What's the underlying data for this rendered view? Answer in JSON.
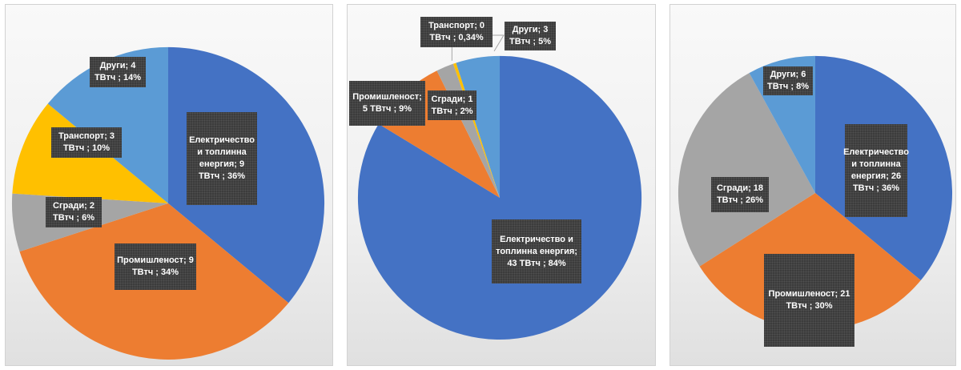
{
  "chart_data": [
    {
      "type": "pie",
      "colors": [
        "#4472c4",
        "#ed7d31",
        "#a5a5a5",
        "#ffc000",
        "#5b9bd5"
      ],
      "slices": [
        {
          "name": "Електричество и топлинна енергия",
          "value": 9,
          "percent": 36,
          "label": "Електричество и топлинна енергия; 9 ТВтч ; 36%"
        },
        {
          "name": "Промишленост",
          "value": 9,
          "percent": 34,
          "label": "Промишленост; 9 ТВтч ; 34%"
        },
        {
          "name": "Сгради",
          "value": 2,
          "percent": 6,
          "label": "Сгради; 2 ТВтч ; 6%"
        },
        {
          "name": "Транспорт",
          "value": 3,
          "percent": 10,
          "label": "Транспорт; 3 ТВтч ; 10%"
        },
        {
          "name": "Други",
          "value": 4,
          "percent": 14,
          "label": "Други; 4 ТВтч ; 14%"
        }
      ]
    },
    {
      "type": "pie",
      "colors": [
        "#4472c4",
        "#ed7d31",
        "#a5a5a5",
        "#ffc000",
        "#5b9bd5"
      ],
      "slices": [
        {
          "name": "Електричество и топлинна енергия",
          "value": 43,
          "percent": 84,
          "label": "Електричество и топлинна енергия; 43 ТВтч ; 84%"
        },
        {
          "name": "Промишленост",
          "value": 5,
          "percent": 9,
          "label": "Промишленост; 5 ТВтч ; 9%"
        },
        {
          "name": "Сгради",
          "value": 1,
          "percent": 2,
          "label": "Сгради; 1 ТВтч ; 2%"
        },
        {
          "name": "Транспорт",
          "value": 0,
          "percent": 0.34,
          "label": "Транспорт; 0 ТВтч ; 0,34%"
        },
        {
          "name": "Други",
          "value": 3,
          "percent": 5,
          "label": "Други; 3 ТВтч ; 5%"
        }
      ]
    },
    {
      "type": "pie",
      "colors": [
        "#4472c4",
        "#ed7d31",
        "#a5a5a5",
        "#5b9bd5"
      ],
      "slices": [
        {
          "name": "Електричество и топлинна енергия",
          "value": 26,
          "percent": 36,
          "label": "Електричество и топлинна енергия; 26 ТВтч ; 36%"
        },
        {
          "name": "Промишленост",
          "value": 21,
          "percent": 30,
          "label": "Промишленост; 21 ТВтч ; 30%"
        },
        {
          "name": "Сгради",
          "value": 18,
          "percent": 26,
          "label": "Сгради; 18 ТВтч ; 26%"
        },
        {
          "name": "Други",
          "value": 6,
          "percent": 8,
          "label": "Други; 6 ТВтч ; 8%"
        }
      ]
    }
  ]
}
